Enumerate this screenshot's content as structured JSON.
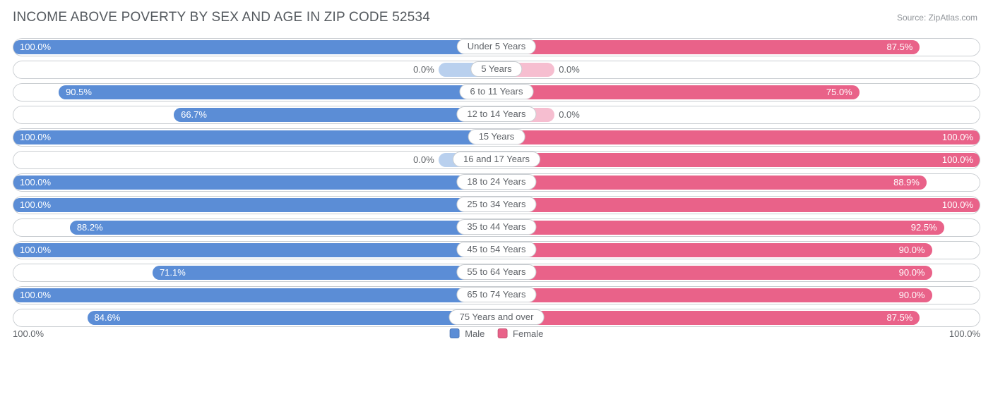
{
  "title": "INCOME ABOVE POVERTY BY SEX AND AGE IN ZIP CODE 52534",
  "source": "Source: ZipAtlas.com",
  "colors": {
    "male_bar": "#5b8dd6",
    "male_track": "#b9d0ee",
    "female_bar": "#e96289",
    "female_track": "#f6bed0",
    "row_border": "#c9cdd1",
    "text_dark": "#5f6368"
  },
  "axis": {
    "left": "100.0%",
    "right": "100.0%"
  },
  "legend": {
    "male": "Male",
    "female": "Female"
  },
  "min_track_pct": 12,
  "rows": [
    {
      "label": "Under 5 Years",
      "male": 100.0,
      "female": 87.5
    },
    {
      "label": "5 Years",
      "male": 0.0,
      "female": 0.0
    },
    {
      "label": "6 to 11 Years",
      "male": 90.5,
      "female": 75.0
    },
    {
      "label": "12 to 14 Years",
      "male": 66.7,
      "female": 0.0
    },
    {
      "label": "15 Years",
      "male": 100.0,
      "female": 100.0
    },
    {
      "label": "16 and 17 Years",
      "male": 0.0,
      "female": 100.0
    },
    {
      "label": "18 to 24 Years",
      "male": 100.0,
      "female": 88.9
    },
    {
      "label": "25 to 34 Years",
      "male": 100.0,
      "female": 100.0
    },
    {
      "label": "35 to 44 Years",
      "male": 88.2,
      "female": 92.5
    },
    {
      "label": "45 to 54 Years",
      "male": 100.0,
      "female": 90.0
    },
    {
      "label": "55 to 64 Years",
      "male": 71.1,
      "female": 90.0
    },
    {
      "label": "65 to 74 Years",
      "male": 100.0,
      "female": 90.0
    },
    {
      "label": "75 Years and over",
      "male": 84.6,
      "female": 87.5
    }
  ]
}
